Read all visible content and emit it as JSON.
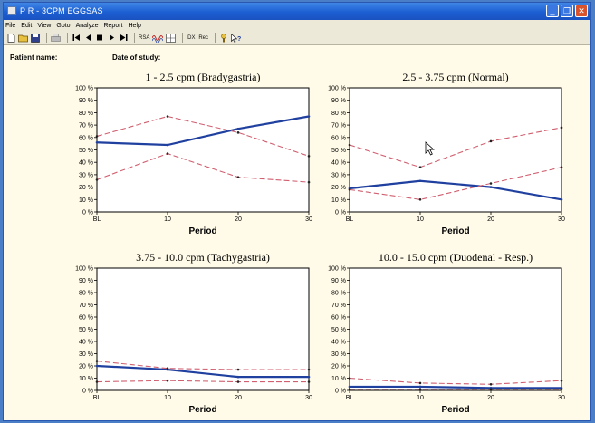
{
  "window": {
    "title": "P R - 3CPM EGGSAS"
  },
  "menu": [
    "File",
    "Edit",
    "View",
    "Goto",
    "Analyze",
    "Report",
    "Help"
  ],
  "toolbar": [
    {
      "icon": "new-file-icon"
    },
    {
      "icon": "open-folder-icon"
    },
    {
      "icon": "save-icon"
    },
    {
      "icon": "print-icon"
    },
    {
      "icon": "skip-start-icon"
    },
    {
      "icon": "step-back-icon"
    },
    {
      "icon": "stop-icon"
    },
    {
      "icon": "play-icon"
    },
    {
      "icon": "skip-end-icon"
    },
    {
      "label": "RSA"
    },
    {
      "icon": "waveform-icon"
    },
    {
      "icon": "grid-icon"
    },
    {
      "label": "DX"
    },
    {
      "label": "Rec"
    },
    {
      "icon": "help-icon"
    },
    {
      "icon": "context-help-icon"
    }
  ],
  "patient": {
    "name_label": "Patient name:",
    "date_label": "Date of study:"
  },
  "chart_data": [
    {
      "type": "line",
      "title": "1 - 2.5 cpm (Bradygastria)",
      "xlabel": "Period",
      "categories": [
        "BL",
        "10",
        "20",
        "30"
      ],
      "yticks": [
        "0 %",
        "10 %",
        "20 %",
        "30 %",
        "40 %",
        "50 %",
        "60 %",
        "70 %",
        "80 %",
        "90 %",
        "100 %"
      ],
      "ylim": [
        0,
        100
      ],
      "series": [
        {
          "role": "mean",
          "color": "#2040a0",
          "values": [
            56,
            54,
            67,
            77
          ]
        },
        {
          "role": "upper",
          "color": "#d06070",
          "values": [
            61,
            77,
            64,
            45
          ]
        },
        {
          "role": "lower",
          "color": "#d06070",
          "values": [
            26,
            47,
            28,
            24
          ]
        }
      ]
    },
    {
      "type": "line",
      "title": "2.5 - 3.75 cpm (Normal)",
      "xlabel": "Period",
      "categories": [
        "BL",
        "10",
        "20",
        "30"
      ],
      "yticks": [
        "0 %",
        "10 %",
        "20 %",
        "30 %",
        "40 %",
        "50 %",
        "60 %",
        "70 %",
        "80 %",
        "90 %",
        "100 %"
      ],
      "ylim": [
        0,
        100
      ],
      "series": [
        {
          "role": "mean",
          "color": "#2040a0",
          "values": [
            19,
            25,
            20,
            10
          ]
        },
        {
          "role": "upper",
          "color": "#d06070",
          "values": [
            54,
            36,
            57,
            68
          ]
        },
        {
          "role": "lower",
          "color": "#d06070",
          "values": [
            18,
            10,
            23,
            36
          ]
        }
      ]
    },
    {
      "type": "line",
      "title": "3.75 - 10.0 cpm (Tachygastria)",
      "xlabel": "Period",
      "categories": [
        "BL",
        "10",
        "20",
        "30"
      ],
      "yticks": [
        "0 %",
        "10 %",
        "20 %",
        "30 %",
        "40 %",
        "50 %",
        "60 %",
        "70 %",
        "80 %",
        "90 %",
        "100 %"
      ],
      "ylim": [
        0,
        100
      ],
      "series": [
        {
          "role": "mean",
          "color": "#2040a0",
          "values": [
            20,
            17,
            11,
            11
          ]
        },
        {
          "role": "upper",
          "color": "#d06070",
          "values": [
            24,
            18,
            17,
            17
          ]
        },
        {
          "role": "lower",
          "color": "#d06070",
          "values": [
            7,
            8,
            7,
            7
          ]
        }
      ]
    },
    {
      "type": "line",
      "title": "10.0 - 15.0 cpm (Duodenal - Resp.)",
      "xlabel": "Period",
      "categories": [
        "BL",
        "10",
        "20",
        "30"
      ],
      "yticks": [
        "0 %",
        "10 %",
        "20 %",
        "30 %",
        "40 %",
        "50 %",
        "60 %",
        "70 %",
        "80 %",
        "90 %",
        "100 %"
      ],
      "ylim": [
        0,
        100
      ],
      "series": [
        {
          "role": "mean",
          "color": "#2040a0",
          "values": [
            3,
            3,
            2,
            2
          ]
        },
        {
          "role": "upper",
          "color": "#d06070",
          "values": [
            10,
            6,
            5,
            8
          ]
        },
        {
          "role": "lower",
          "color": "#d06070",
          "values": [
            1,
            1,
            1,
            1
          ]
        }
      ]
    }
  ]
}
